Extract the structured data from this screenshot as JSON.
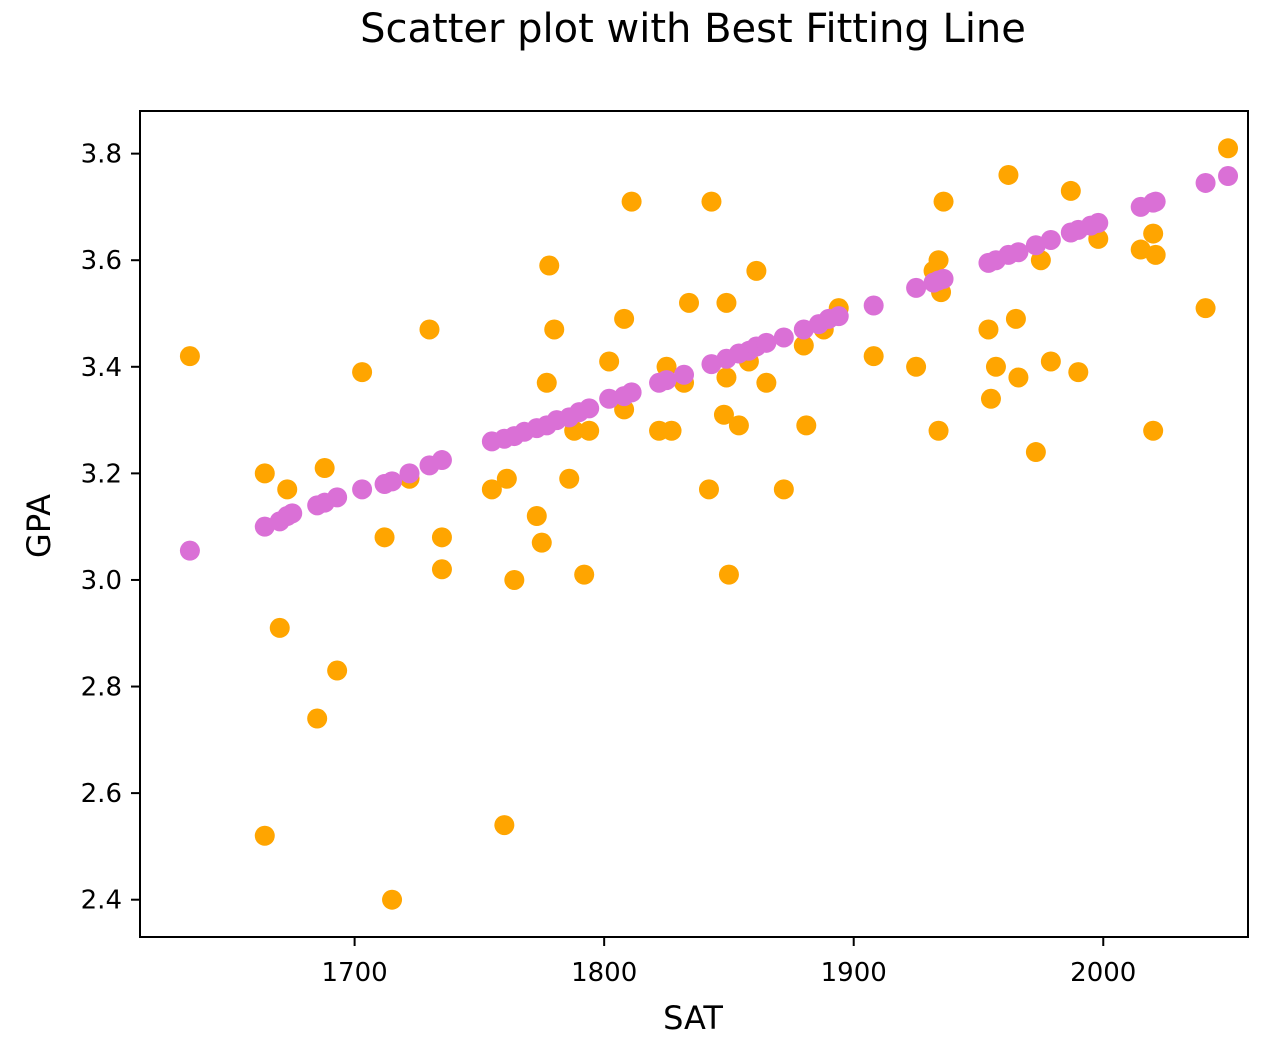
{
  "chart_data": {
    "type": "scatter",
    "title": "Scatter plot with Best Fitting Line",
    "xlabel": "SAT",
    "ylabel": "GPA",
    "xlim": [
      1614,
      2058
    ],
    "ylim": [
      2.33,
      3.88
    ],
    "x_ticks": [
      1700,
      1800,
      1900,
      2000
    ],
    "y_ticks": [
      2.4,
      2.6,
      2.8,
      3.0,
      3.2,
      3.4,
      3.6,
      3.8
    ],
    "x_tick_labels": [
      "1700",
      "1800",
      "1900",
      "2000"
    ],
    "y_tick_labels": [
      "2.4",
      "2.6",
      "2.8",
      "3.0",
      "3.2",
      "3.4",
      "3.6",
      "3.8"
    ],
    "grid": false,
    "series": [
      {
        "color": "#ffa500",
        "points": [
          [
            1634,
            3.42
          ],
          [
            1664,
            3.2
          ],
          [
            1664,
            2.52
          ],
          [
            1670,
            2.91
          ],
          [
            1673,
            3.17
          ],
          [
            1685,
            2.74
          ],
          [
            1688,
            3.21
          ],
          [
            1693,
            2.83
          ],
          [
            1703,
            3.39
          ],
          [
            1712,
            3.08
          ],
          [
            1715,
            2.4
          ],
          [
            1722,
            3.19
          ],
          [
            1730,
            3.47
          ],
          [
            1735,
            3.08
          ],
          [
            1735,
            3.02
          ],
          [
            1755,
            3.17
          ],
          [
            1760,
            2.54
          ],
          [
            1761,
            3.19
          ],
          [
            1764,
            3.0
          ],
          [
            1773,
            3.12
          ],
          [
            1775,
            3.07
          ],
          [
            1777,
            3.37
          ],
          [
            1778,
            3.59
          ],
          [
            1780,
            3.47
          ],
          [
            1786,
            3.19
          ],
          [
            1788,
            3.28
          ],
          [
            1792,
            3.01
          ],
          [
            1794,
            3.28
          ],
          [
            1802,
            3.41
          ],
          [
            1808,
            3.32
          ],
          [
            1808,
            3.49
          ],
          [
            1811,
            3.71
          ],
          [
            1822,
            3.28
          ],
          [
            1825,
            3.4
          ],
          [
            1827,
            3.28
          ],
          [
            1832,
            3.37
          ],
          [
            1834,
            3.52
          ],
          [
            1842,
            3.17
          ],
          [
            1843,
            3.71
          ],
          [
            1848,
            3.31
          ],
          [
            1849,
            3.38
          ],
          [
            1849,
            3.52
          ],
          [
            1850,
            3.01
          ],
          [
            1854,
            3.29
          ],
          [
            1858,
            3.41
          ],
          [
            1861,
            3.58
          ],
          [
            1865,
            3.37
          ],
          [
            1872,
            3.17
          ],
          [
            1880,
            3.44
          ],
          [
            1881,
            3.29
          ],
          [
            1888,
            3.47
          ],
          [
            1894,
            3.51
          ],
          [
            1908,
            3.42
          ],
          [
            1925,
            3.4
          ],
          [
            1932,
            3.58
          ],
          [
            1934,
            3.28
          ],
          [
            1934,
            3.6
          ],
          [
            1935,
            3.54
          ],
          [
            1936,
            3.71
          ],
          [
            1954,
            3.47
          ],
          [
            1955,
            3.34
          ],
          [
            1957,
            3.4
          ],
          [
            1962,
            3.76
          ],
          [
            1965,
            3.49
          ],
          [
            1966,
            3.38
          ],
          [
            1973,
            3.24
          ],
          [
            1975,
            3.6
          ],
          [
            1979,
            3.41
          ],
          [
            1987,
            3.73
          ],
          [
            1990,
            3.39
          ],
          [
            1998,
            3.64
          ],
          [
            2015,
            3.62
          ],
          [
            2020,
            3.65
          ],
          [
            2020,
            3.28
          ],
          [
            2021,
            3.61
          ],
          [
            2041,
            3.51
          ],
          [
            2050,
            3.81
          ]
        ]
      },
      {
        "color": "#da70d6",
        "points": [
          [
            1634,
            3.055
          ],
          [
            1664,
            3.1
          ],
          [
            1670,
            3.11
          ],
          [
            1673,
            3.12
          ],
          [
            1675,
            3.125
          ],
          [
            1685,
            3.14
          ],
          [
            1688,
            3.145
          ],
          [
            1693,
            3.155
          ],
          [
            1703,
            3.17
          ],
          [
            1712,
            3.18
          ],
          [
            1715,
            3.185
          ],
          [
            1722,
            3.2
          ],
          [
            1730,
            3.215
          ],
          [
            1735,
            3.225
          ],
          [
            1755,
            3.26
          ],
          [
            1760,
            3.265
          ],
          [
            1764,
            3.27
          ],
          [
            1768,
            3.278
          ],
          [
            1773,
            3.285
          ],
          [
            1777,
            3.29
          ],
          [
            1781,
            3.3
          ],
          [
            1786,
            3.305
          ],
          [
            1790,
            3.315
          ],
          [
            1794,
            3.322
          ],
          [
            1802,
            3.34
          ],
          [
            1808,
            3.345
          ],
          [
            1811,
            3.352
          ],
          [
            1822,
            3.37
          ],
          [
            1825,
            3.375
          ],
          [
            1832,
            3.385
          ],
          [
            1843,
            3.405
          ],
          [
            1849,
            3.415
          ],
          [
            1854,
            3.425
          ],
          [
            1858,
            3.43
          ],
          [
            1861,
            3.438
          ],
          [
            1865,
            3.445
          ],
          [
            1872,
            3.455
          ],
          [
            1880,
            3.47
          ],
          [
            1886,
            3.48
          ],
          [
            1890,
            3.49
          ],
          [
            1894,
            3.495
          ],
          [
            1908,
            3.515
          ],
          [
            1925,
            3.548
          ],
          [
            1932,
            3.558
          ],
          [
            1934,
            3.562
          ],
          [
            1936,
            3.565
          ],
          [
            1954,
            3.595
          ],
          [
            1957,
            3.6
          ],
          [
            1962,
            3.61
          ],
          [
            1966,
            3.615
          ],
          [
            1973,
            3.628
          ],
          [
            1979,
            3.638
          ],
          [
            1987,
            3.652
          ],
          [
            1990,
            3.657
          ],
          [
            1995,
            3.665
          ],
          [
            1998,
            3.67
          ],
          [
            2015,
            3.7
          ],
          [
            2020,
            3.708
          ],
          [
            2021,
            3.71
          ],
          [
            2041,
            3.745
          ],
          [
            2050,
            3.758
          ]
        ]
      }
    ]
  }
}
